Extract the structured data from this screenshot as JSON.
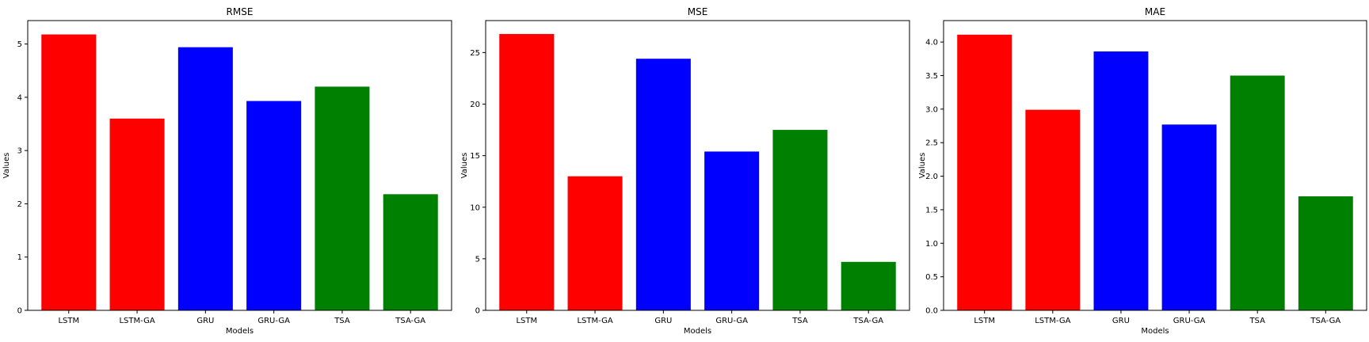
{
  "chart_data": [
    {
      "type": "bar",
      "title": "RMSE",
      "xlabel": "Models",
      "ylabel": "Values",
      "categories": [
        "LSTM",
        "LSTM-GA",
        "GRU",
        "GRU-GA",
        "TSA",
        "TSA-GA"
      ],
      "values": [
        5.18,
        3.6,
        4.94,
        3.93,
        4.2,
        2.18
      ],
      "colors": [
        "#ff0000",
        "#ff0000",
        "#0000ff",
        "#0000ff",
        "#008000",
        "#008000"
      ],
      "ylim": [
        0,
        5.44
      ],
      "yticks": [
        0,
        1,
        2,
        3,
        4,
        5
      ],
      "ytick_labels": [
        "0",
        "1",
        "2",
        "3",
        "4",
        "5"
      ],
      "grid": false
    },
    {
      "type": "bar",
      "title": "MSE",
      "xlabel": "Models",
      "ylabel": "Values",
      "categories": [
        "LSTM",
        "LSTM-GA",
        "GRU",
        "GRU-GA",
        "TSA",
        "TSA-GA"
      ],
      "values": [
        26.8,
        13.0,
        24.4,
        15.4,
        17.5,
        4.7
      ],
      "colors": [
        "#ff0000",
        "#ff0000",
        "#0000ff",
        "#0000ff",
        "#008000",
        "#008000"
      ],
      "ylim": [
        0,
        28.1
      ],
      "yticks": [
        0,
        5,
        10,
        15,
        20,
        25
      ],
      "ytick_labels": [
        "0",
        "5",
        "10",
        "15",
        "20",
        "25"
      ],
      "grid": false
    },
    {
      "type": "bar",
      "title": "MAE",
      "xlabel": "Models",
      "ylabel": "Values",
      "categories": [
        "LSTM",
        "LSTM-GA",
        "GRU",
        "GRU-GA",
        "TSA",
        "TSA-GA"
      ],
      "values": [
        4.11,
        2.99,
        3.86,
        2.77,
        3.5,
        1.7
      ],
      "colors": [
        "#ff0000",
        "#ff0000",
        "#0000ff",
        "#0000ff",
        "#008000",
        "#008000"
      ],
      "ylim": [
        0,
        4.32
      ],
      "yticks": [
        0,
        0.5,
        1.0,
        1.5,
        2.0,
        2.5,
        3.0,
        3.5,
        4.0
      ],
      "ytick_labels": [
        "0.0",
        "0.5",
        "1.0",
        "1.5",
        "2.0",
        "2.5",
        "3.0",
        "3.5",
        "4.0"
      ],
      "grid": false
    }
  ]
}
